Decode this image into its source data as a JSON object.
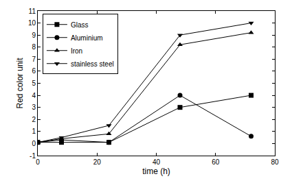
{
  "chart_data": {
    "type": "line",
    "x_label": "time (h)",
    "y_label": "Red color unit",
    "x": [
      0,
      8,
      24,
      48,
      72
    ],
    "series": [
      {
        "name": "Glass",
        "color": "#000000",
        "marker": "square",
        "values": [
          0.1,
          0.1,
          0.1,
          3,
          4
        ]
      },
      {
        "name": "Aluminium",
        "color": "#000000",
        "marker": "circle",
        "values": [
          0.1,
          0.3,
          0.1,
          4,
          0.6
        ]
      },
      {
        "name": "Iron",
        "color": "#000000",
        "marker": "triangle-up",
        "values": [
          0.1,
          0.4,
          0.8,
          8.2,
          9.2
        ]
      },
      {
        "name": "stainless steel",
        "color": "#000000",
        "marker": "triangle-down",
        "values": [
          0.1,
          0.5,
          1.5,
          9,
          10
        ]
      }
    ],
    "xlim": [
      0,
      80
    ],
    "xticks": [
      0,
      20,
      40,
      60,
      80
    ],
    "ylim": [
      -1,
      11
    ],
    "yticks": [
      -1,
      0,
      1,
      2,
      3,
      4,
      5,
      6,
      7,
      8,
      9,
      10,
      11
    ],
    "grid": false,
    "legend": "upper left"
  }
}
